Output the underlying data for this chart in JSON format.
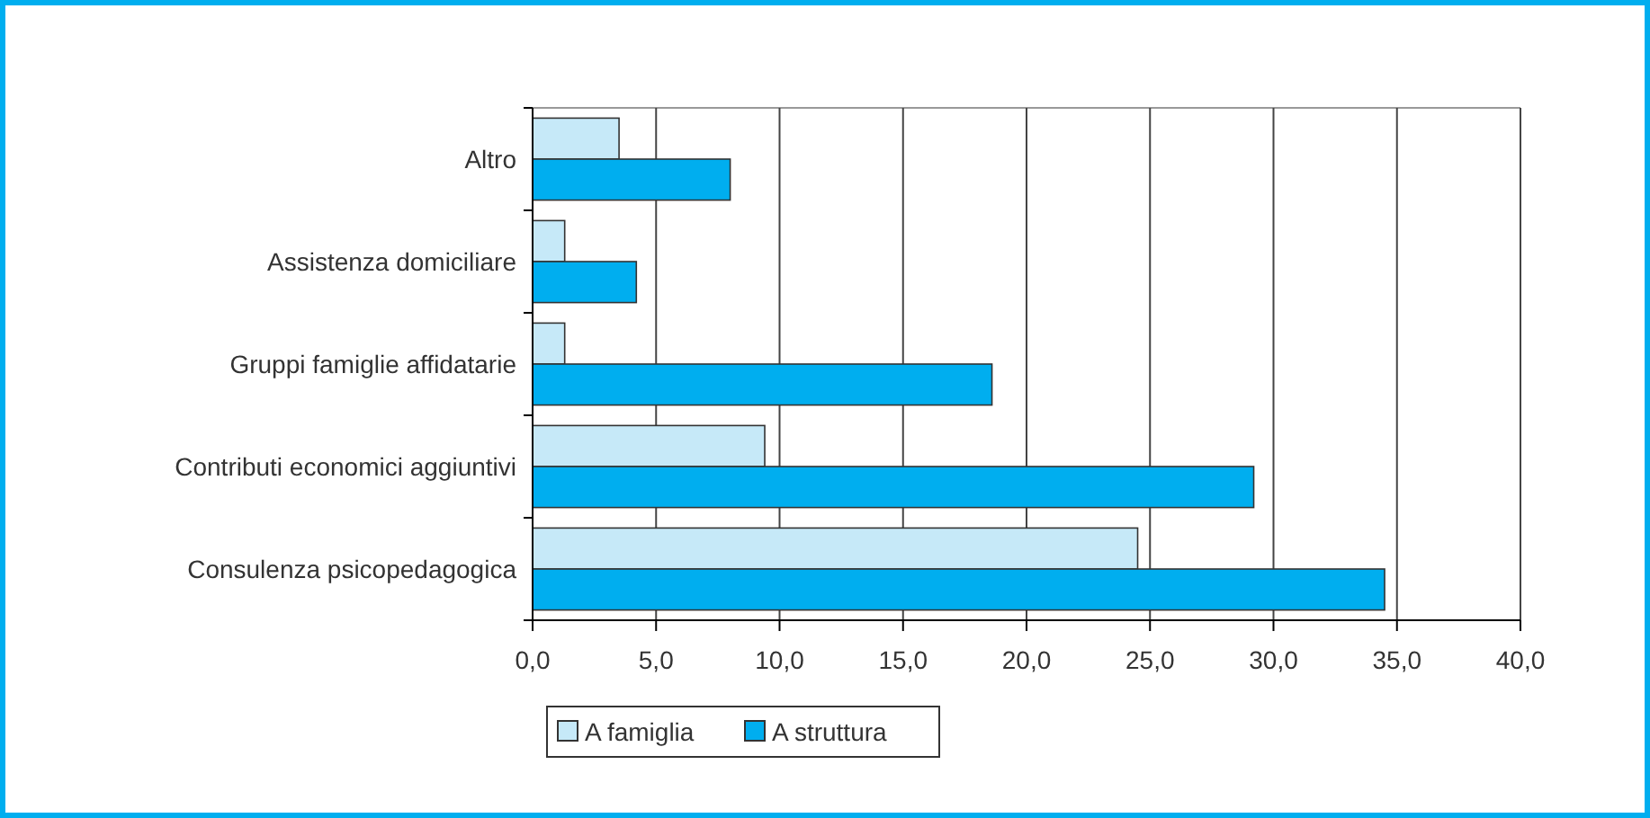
{
  "chart_data": {
    "type": "bar",
    "orientation": "horizontal",
    "categories": [
      "Altro",
      "Assistenza domiciliare",
      "Gruppi famiglie affidatarie",
      "Contributi economici aggiuntivi",
      "Consulenza psicopedagogica"
    ],
    "series": [
      {
        "name": "A famiglia",
        "color": "#c6e9f8",
        "values": [
          3.5,
          1.3,
          1.3,
          9.4,
          24.5
        ]
      },
      {
        "name": "A struttura",
        "color": "#00aeef",
        "values": [
          8.0,
          4.2,
          18.6,
          29.2,
          34.5
        ]
      }
    ],
    "xlim": [
      0,
      40
    ],
    "xticks": [
      {
        "value": 0,
        "label": "0,0"
      },
      {
        "value": 5,
        "label": "5,0"
      },
      {
        "value": 10,
        "label": "10,0"
      },
      {
        "value": 15,
        "label": "15,0"
      },
      {
        "value": 20,
        "label": "20,0"
      },
      {
        "value": 25,
        "label": "25,0"
      },
      {
        "value": 30,
        "label": "30,0"
      },
      {
        "value": 35,
        "label": "35,0"
      },
      {
        "value": 40,
        "label": "40,0"
      }
    ],
    "grid": "x",
    "legend": "bottom"
  }
}
